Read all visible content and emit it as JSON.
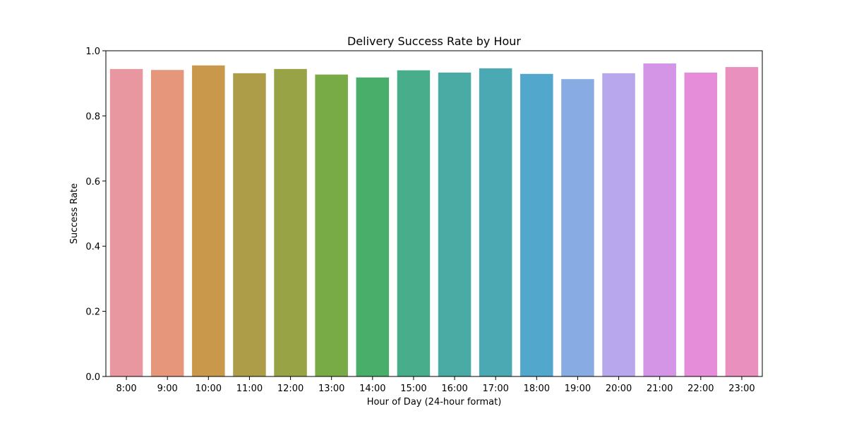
{
  "chart_data": {
    "type": "bar",
    "title": "Delivery Success Rate by Hour",
    "xlabel": "Hour of Day (24-hour format)",
    "ylabel": "Success Rate",
    "categories": [
      "8:00",
      "9:00",
      "10:00",
      "11:00",
      "12:00",
      "13:00",
      "14:00",
      "15:00",
      "16:00",
      "17:00",
      "18:00",
      "19:00",
      "20:00",
      "21:00",
      "22:00",
      "23:00"
    ],
    "values": [
      0.944,
      0.941,
      0.955,
      0.931,
      0.944,
      0.927,
      0.918,
      0.94,
      0.933,
      0.946,
      0.929,
      0.913,
      0.931,
      0.961,
      0.933,
      0.95
    ],
    "ylim": [
      0,
      1.0
    ],
    "yticks": [
      "0.0",
      "0.2",
      "0.4",
      "0.6",
      "0.8",
      "1.0"
    ],
    "grid": false,
    "legend": "none",
    "colors": [
      "#e8969f",
      "#e6967a",
      "#c9984b",
      "#ae9d48",
      "#98a345",
      "#78aa45",
      "#4aae6b",
      "#48ad8b",
      "#4aaba4",
      "#4ba9b4",
      "#52a8cc",
      "#89abe3",
      "#b8a7ec",
      "#d495e6",
      "#e68dda",
      "#e990bf"
    ]
  }
}
